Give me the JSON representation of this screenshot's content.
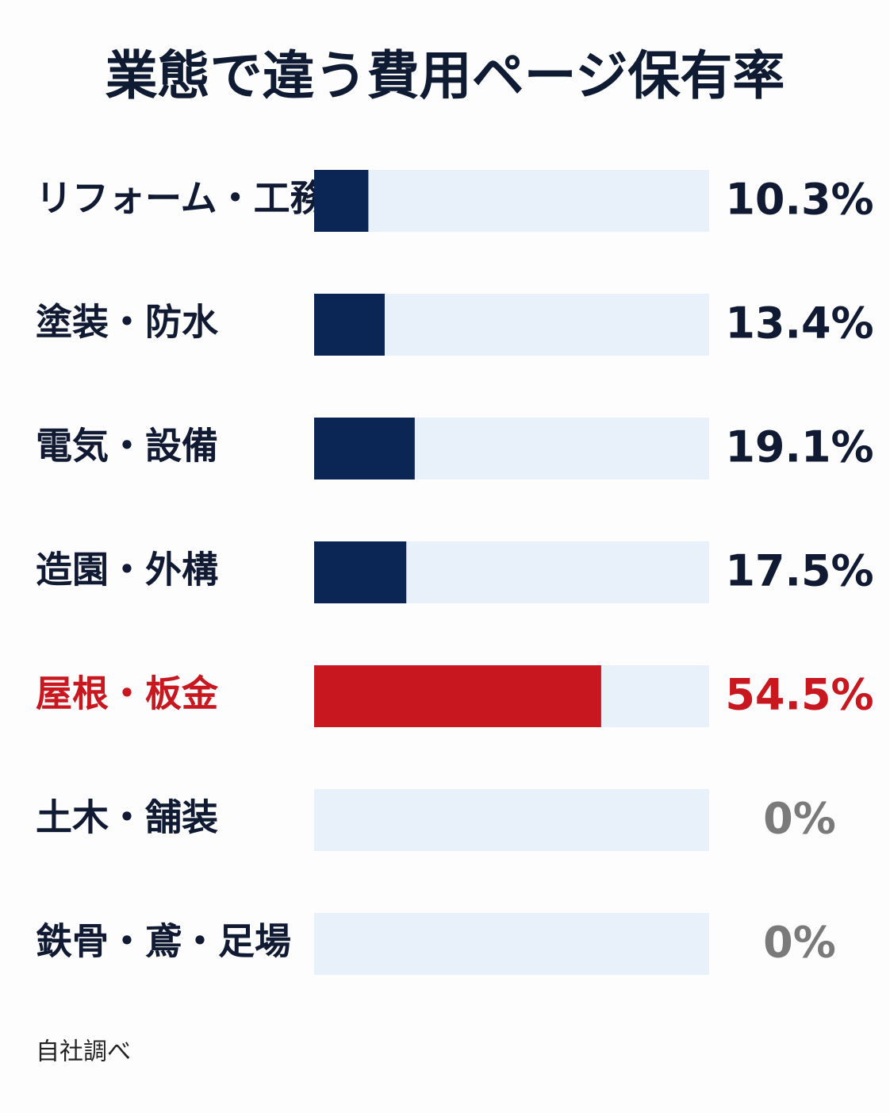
{
  "chart_data": {
    "type": "barh",
    "title": "業態で違う費用ページ保有率",
    "categories": [
      "リフォーム・工務店",
      "塗装・防水",
      "電気・設備",
      "造園・外構",
      "屋根・板金",
      "土木・舗装",
      "鉄骨・鳶・足場"
    ],
    "values": [
      10.3,
      13.4,
      19.1,
      17.5,
      54.5,
      0,
      0
    ],
    "value_labels": [
      "10.3%",
      "13.4%",
      "19.1%",
      "17.5%",
      "54.5%",
      "0%",
      "0%"
    ],
    "colors": [
      "#0b2555",
      "#0b2555",
      "#0b2555",
      "#0b2555",
      "#c8171e",
      "#0b2555",
      "#0b2555"
    ],
    "track_color": "#e8f0fa",
    "xlim": [
      0,
      75
    ],
    "source": "自社調べ"
  }
}
